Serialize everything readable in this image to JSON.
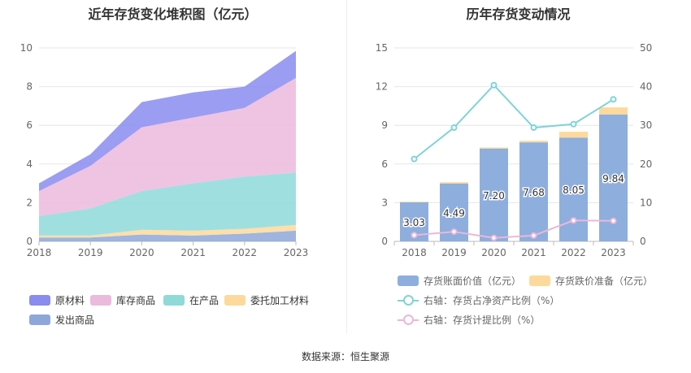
{
  "source_text": "数据来源：恒生聚源",
  "chart_data": [
    {
      "type": "area",
      "title": "近年存货变化堆积图（亿元）",
      "x": [
        "2018",
        "2019",
        "2020",
        "2021",
        "2022",
        "2023"
      ],
      "ylim": [
        0,
        10
      ],
      "yticks": [
        "0",
        "2",
        "4",
        "6",
        "8",
        "10"
      ],
      "stacked": true,
      "grid": true,
      "legend_position": "bottom",
      "series": [
        {
          "name": "发出商品",
          "color": "#8ea7d9",
          "values": [
            0.2,
            0.2,
            0.35,
            0.3,
            0.4,
            0.55
          ]
        },
        {
          "name": "委托加工材料",
          "color": "#fdd99b",
          "values": [
            0.1,
            0.1,
            0.25,
            0.25,
            0.25,
            0.3
          ]
        },
        {
          "name": "在产品",
          "color": "#8fd9d9",
          "values": [
            1.0,
            1.4,
            2.0,
            2.45,
            2.7,
            2.7
          ]
        },
        {
          "name": "库存商品",
          "color": "#ecbadd",
          "values": [
            1.3,
            2.2,
            3.3,
            3.4,
            3.55,
            4.9
          ]
        },
        {
          "name": "原材料",
          "color": "#8a8cf0",
          "values": [
            0.4,
            0.6,
            1.3,
            1.3,
            1.1,
            1.4
          ]
        }
      ]
    },
    {
      "type": "bar",
      "title": "历年存货变动情况",
      "categories": [
        "2018",
        "2019",
        "2020",
        "2021",
        "2022",
        "2023"
      ],
      "ylim_left": [
        0,
        15
      ],
      "yticks_left": [
        "0",
        "3",
        "6",
        "9",
        "12",
        "15"
      ],
      "ylim_right": [
        0,
        50
      ],
      "yticks_right": [
        "0",
        "10",
        "20",
        "30",
        "40",
        "50"
      ],
      "grid": true,
      "legend_position": "bottom",
      "series": [
        {
          "name": "存货账面价值（亿元）",
          "kind": "bar",
          "color": "#8eaedd",
          "values": [
            3.03,
            4.49,
            7.2,
            7.68,
            8.05,
            9.84
          ],
          "labels": [
            "3.03",
            "4.49",
            "7.20",
            "7.68",
            "8.05",
            "9.84"
          ]
        },
        {
          "name": "存货跌价准备（亿元）",
          "kind": "bar-stack",
          "color": "#fdd99b",
          "values": [
            0.05,
            0.1,
            0.08,
            0.12,
            0.45,
            0.55
          ]
        },
        {
          "name": "右轴：存货占净资产比例（%）",
          "kind": "line",
          "axis": "right",
          "color": "#7fd3d9",
          "values": [
            21.3,
            29.4,
            40.4,
            29.4,
            30.3,
            36.7
          ]
        },
        {
          "name": "右轴：存货计提比例（%）",
          "kind": "line",
          "axis": "right",
          "color": "#eab8da",
          "values": [
            1.6,
            2.5,
            0.9,
            1.5,
            5.4,
            5.3
          ]
        }
      ]
    }
  ]
}
